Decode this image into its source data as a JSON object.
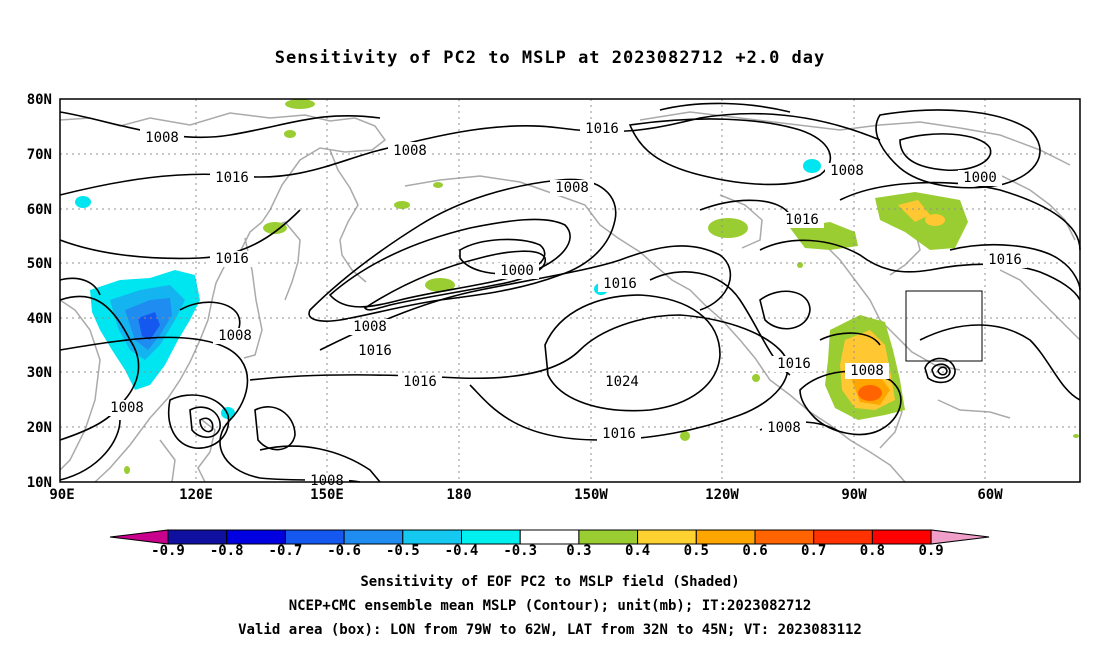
{
  "title": "Sensitivity of PC2 to MSLP at 2023082712 +2.0 day",
  "lat_labels": [
    "80N",
    "70N",
    "60N",
    "50N",
    "40N",
    "30N",
    "20N",
    "10N"
  ],
  "lon_labels": [
    "90E",
    "120E",
    "150E",
    "180",
    "150W",
    "120W",
    "90W",
    "60W"
  ],
  "contour_labels": [
    "1008",
    "1008",
    "1016",
    "1016",
    "1008",
    "1016",
    "1000",
    "1008",
    "1016",
    "1016",
    "1024",
    "1016",
    "1016",
    "1016",
    "1008",
    "1008",
    "1008",
    "1000",
    "1016",
    "1008",
    "1008",
    "1008",
    "1016",
    "1008"
  ],
  "colorbar": {
    "labels": [
      "-0.9",
      "-0.8",
      "-0.7",
      "-0.6",
      "-0.5",
      "-0.4",
      "-0.3",
      "0.3",
      "0.4",
      "0.5",
      "0.6",
      "0.7",
      "0.8",
      "0.9"
    ],
    "colors": [
      "#c8008c",
      "#1010a0",
      "#0000e0",
      "#1458f0",
      "#1e8cf0",
      "#14c8f0",
      "#00f0f0",
      "#ffffff",
      "#9acd32",
      "#ffd232",
      "#ffa500",
      "#ff6400",
      "#ff3200",
      "#ff0000",
      "#f0a0c8"
    ]
  },
  "footer": {
    "line1": "Sensitivity of EOF PC2 to MSLP field (Shaded)",
    "line2": "NCEP+CMC ensemble mean MSLP (Contour); unit(mb); IT:2023082712",
    "line3": "Valid area (box): LON from 79W to 62W, LAT from 32N to 45N; VT: 2023083112"
  },
  "valid_box": {
    "lon_from": "79W",
    "lon_to": "62W",
    "lat_from": "32N",
    "lat_to": "45N"
  }
}
